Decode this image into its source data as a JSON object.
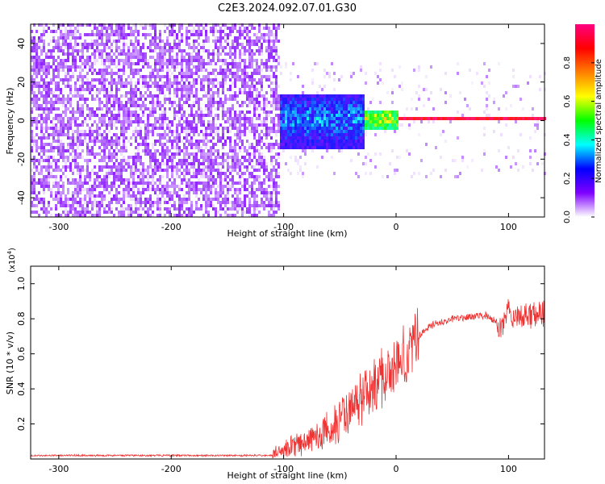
{
  "title": "C2E3.2024.092.07.01.G30",
  "chart_data": [
    {
      "type": "heatmap",
      "xlabel": "Height of straight line (km)",
      "ylabel": "Frequency (Hz)",
      "xlim": [
        -325,
        132
      ],
      "ylim": [
        -50,
        50
      ],
      "x_ticks": [
        -300,
        -200,
        -100,
        0,
        100
      ],
      "x_tick_labels": [
        "-300",
        "-200",
        "-100",
        "0",
        "100"
      ],
      "y_ticks": [
        -40,
        -20,
        0,
        20,
        40
      ],
      "y_tick_labels": [
        "-40",
        "-20",
        "0",
        "20",
        "40"
      ],
      "colorbar": {
        "label": "Normalized spectral amplitude",
        "range": [
          0,
          1
        ],
        "ticks": [
          0.0,
          0.2,
          0.4,
          0.6,
          0.8
        ],
        "tick_labels": [
          "0.0",
          "0.2",
          "0.4",
          "0.6",
          "0.8"
        ],
        "colormap": [
          "#ffffff",
          "#7f00ff",
          "#0000ff",
          "#00ffff",
          "#00ff00",
          "#ffff00",
          "#ff7f00",
          "#ff0000",
          "#ff0080"
        ]
      },
      "regions": [
        {
          "x_range": [
            -325,
            -105
          ],
          "freq_range": [
            -50,
            50
          ],
          "typical_amplitude": [
            0.0,
            0.12
          ]
        },
        {
          "x_range": [
            -105,
            -30
          ],
          "freq_range": [
            -15,
            12
          ],
          "typical_amplitude": [
            0.1,
            0.4
          ]
        },
        {
          "x_range": [
            -30,
            0
          ],
          "freq_range": [
            -5,
            5
          ],
          "typical_amplitude": [
            0.3,
            0.7
          ]
        },
        {
          "x_range": [
            0,
            132
          ],
          "freq_range": [
            -1,
            1
          ],
          "typical_amplitude": [
            0.8,
            1.0
          ]
        }
      ]
    },
    {
      "type": "line",
      "xlabel": "Height of straight line (km)",
      "ylabel": "SNR (10 * v/v)",
      "y_multiplier_label": "(x10",
      "y_multiplier_exp": "4",
      "xlim": [
        -325,
        132
      ],
      "ylim": [
        0,
        1.1
      ],
      "x_ticks": [
        -300,
        -200,
        -100,
        0,
        100
      ],
      "x_tick_labels": [
        "-300",
        "-200",
        "-100",
        "0",
        "100"
      ],
      "y_ticks": [
        0.2,
        0.4,
        0.6,
        0.8,
        1.0
      ],
      "y_tick_labels": [
        "0.2",
        "0.4",
        "0.6",
        "0.8",
        "1.0"
      ],
      "color": "#ee3333",
      "x": [
        -325,
        -110,
        -100,
        -80,
        -60,
        -40,
        -30,
        -20,
        -10,
        0,
        10,
        20,
        30,
        50,
        80,
        95,
        100,
        105,
        110,
        132
      ],
      "y": [
        0.02,
        0.02,
        0.06,
        0.1,
        0.16,
        0.28,
        0.35,
        0.42,
        0.48,
        0.52,
        0.62,
        0.7,
        0.76,
        0.8,
        0.82,
        0.75,
        0.85,
        0.8,
        0.82,
        0.83
      ]
    }
  ]
}
